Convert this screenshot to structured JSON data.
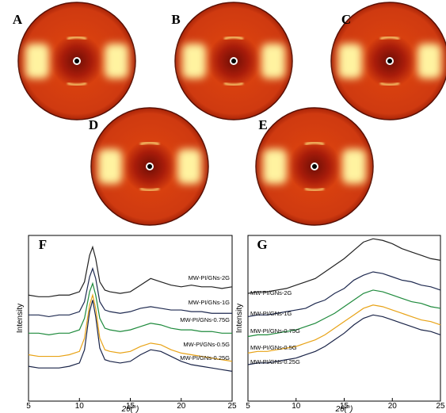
{
  "patterns": {
    "labels": [
      "A",
      "B",
      "C",
      "D",
      "E"
    ]
  },
  "chart_data": [
    {
      "type": "line",
      "title": "F",
      "y_label": "Intensity",
      "x_label": "2θ(°)",
      "x": [
        5,
        6,
        7,
        8,
        9,
        10,
        10.5,
        11,
        11.3,
        11.6,
        12,
        12.5,
        13,
        14,
        15,
        16,
        17,
        18,
        19,
        20,
        21,
        22,
        23,
        24,
        25
      ],
      "xlim": [
        5,
        25
      ],
      "xticks": [
        5,
        10,
        15,
        20,
        25
      ],
      "ylim": [
        0,
        100
      ],
      "series": [
        {
          "name": "MW-PI/GNs-2G",
          "color": "#222222",
          "values": [
            64,
            63,
            63,
            64,
            64,
            66,
            72,
            88,
            93,
            86,
            72,
            67,
            66,
            65,
            66,
            70,
            74,
            72,
            70,
            69,
            70,
            69,
            69,
            68,
            69
          ]
        },
        {
          "name": "MW-PI/GNs-1G",
          "color": "#1f2a50",
          "values": [
            52,
            52,
            51,
            52,
            52,
            54,
            60,
            75,
            80,
            74,
            60,
            55,
            54,
            53,
            54,
            56,
            57,
            56,
            55,
            55,
            54,
            54,
            53,
            53,
            53
          ]
        },
        {
          "name": "MW-PI/GNs-0.75G",
          "color": "#1e8a3c",
          "values": [
            41,
            41,
            40,
            41,
            41,
            43,
            50,
            66,
            71,
            64,
            50,
            44,
            43,
            42,
            43,
            45,
            47,
            46,
            44,
            43,
            43,
            42,
            42,
            41,
            41
          ]
        },
        {
          "name": "MW-PI/GNs-0.5G",
          "color": "#e8a317",
          "values": [
            28,
            27,
            27,
            27,
            28,
            30,
            38,
            58,
            64,
            56,
            38,
            31,
            30,
            29,
            30,
            33,
            35,
            34,
            31,
            29,
            28,
            27,
            26,
            25,
            24
          ]
        },
        {
          "name": "MW-PI/GNs-0.25G",
          "color": "#1a2448",
          "values": [
            21,
            20,
            20,
            20,
            21,
            23,
            31,
            54,
            61,
            51,
            32,
            25,
            24,
            23,
            24,
            28,
            31,
            30,
            27,
            24,
            22,
            21,
            20,
            19,
            18
          ]
        }
      ]
    },
    {
      "type": "line",
      "title": "G",
      "y_label": "Intensity",
      "x_label": "2θ(°)",
      "x": [
        5,
        6,
        7,
        8,
        9,
        10,
        11,
        12,
        13,
        14,
        15,
        16,
        17,
        18,
        19,
        20,
        21,
        22,
        23,
        24,
        25
      ],
      "xlim": [
        5,
        25
      ],
      "xticks": [
        5,
        10,
        15,
        20,
        25
      ],
      "ylim": [
        0,
        100
      ],
      "series": [
        {
          "name": "MW-PI/GNs-2G",
          "color": "#222222",
          "values": [
            65,
            66,
            66,
            67,
            68,
            70,
            72,
            74,
            78,
            82,
            86,
            91,
            96,
            98,
            97,
            95,
            92,
            90,
            88,
            86,
            85
          ]
        },
        {
          "name": "MW-PI/GNs-1G",
          "color": "#1f2a50",
          "values": [
            51,
            52,
            52,
            53,
            54,
            55,
            56,
            59,
            61,
            65,
            68,
            73,
            76,
            78,
            77,
            75,
            73,
            72,
            70,
            69,
            67
          ]
        },
        {
          "name": "MW-PI/GNs-0.75G",
          "color": "#1e8a3c",
          "values": [
            39,
            40,
            40,
            41,
            42,
            43,
            45,
            47,
            50,
            53,
            57,
            61,
            65,
            67,
            66,
            64,
            62,
            60,
            59,
            57,
            56
          ]
        },
        {
          "name": "MW-PI/GNs-0.5G",
          "color": "#e8a317",
          "values": [
            29,
            30,
            30,
            31,
            32,
            33,
            35,
            37,
            40,
            44,
            48,
            52,
            56,
            58,
            57,
            55,
            53,
            51,
            49,
            48,
            46
          ]
        },
        {
          "name": "MW-PI/GNs-0.25G",
          "color": "#1a2448",
          "values": [
            22,
            23,
            23,
            24,
            25,
            26,
            28,
            30,
            33,
            37,
            41,
            46,
            50,
            52,
            51,
            49,
            47,
            45,
            43,
            42,
            40
          ]
        }
      ]
    }
  ]
}
